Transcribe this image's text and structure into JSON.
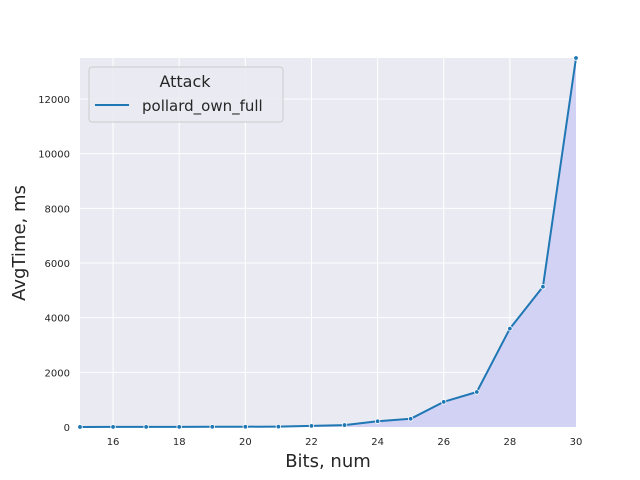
{
  "chart_data": {
    "type": "line",
    "title": "",
    "xlabel": "Bits, num",
    "ylabel": "AvgTime, ms",
    "xlim": [
      15,
      30
    ],
    "ylim": [
      0,
      13500
    ],
    "x_ticks": [
      16,
      18,
      20,
      22,
      24,
      26,
      28,
      30
    ],
    "y_ticks": [
      0,
      2000,
      4000,
      6000,
      8000,
      10000,
      12000
    ],
    "grid": true,
    "legend": {
      "title": "Attack",
      "placement": "top-left"
    },
    "series": [
      {
        "name": "pollard_own_full",
        "color": "#1f77b4",
        "fill_color": "#d2d2f5",
        "x": [
          15,
          16,
          17,
          18,
          19,
          20,
          21,
          22,
          23,
          24,
          25,
          26,
          27,
          28,
          29,
          30
        ],
        "y": [
          2,
          3,
          4,
          5,
          7,
          10,
          15,
          40,
          70,
          210,
          300,
          920,
          1280,
          3600,
          5130,
          13500
        ]
      }
    ]
  }
}
